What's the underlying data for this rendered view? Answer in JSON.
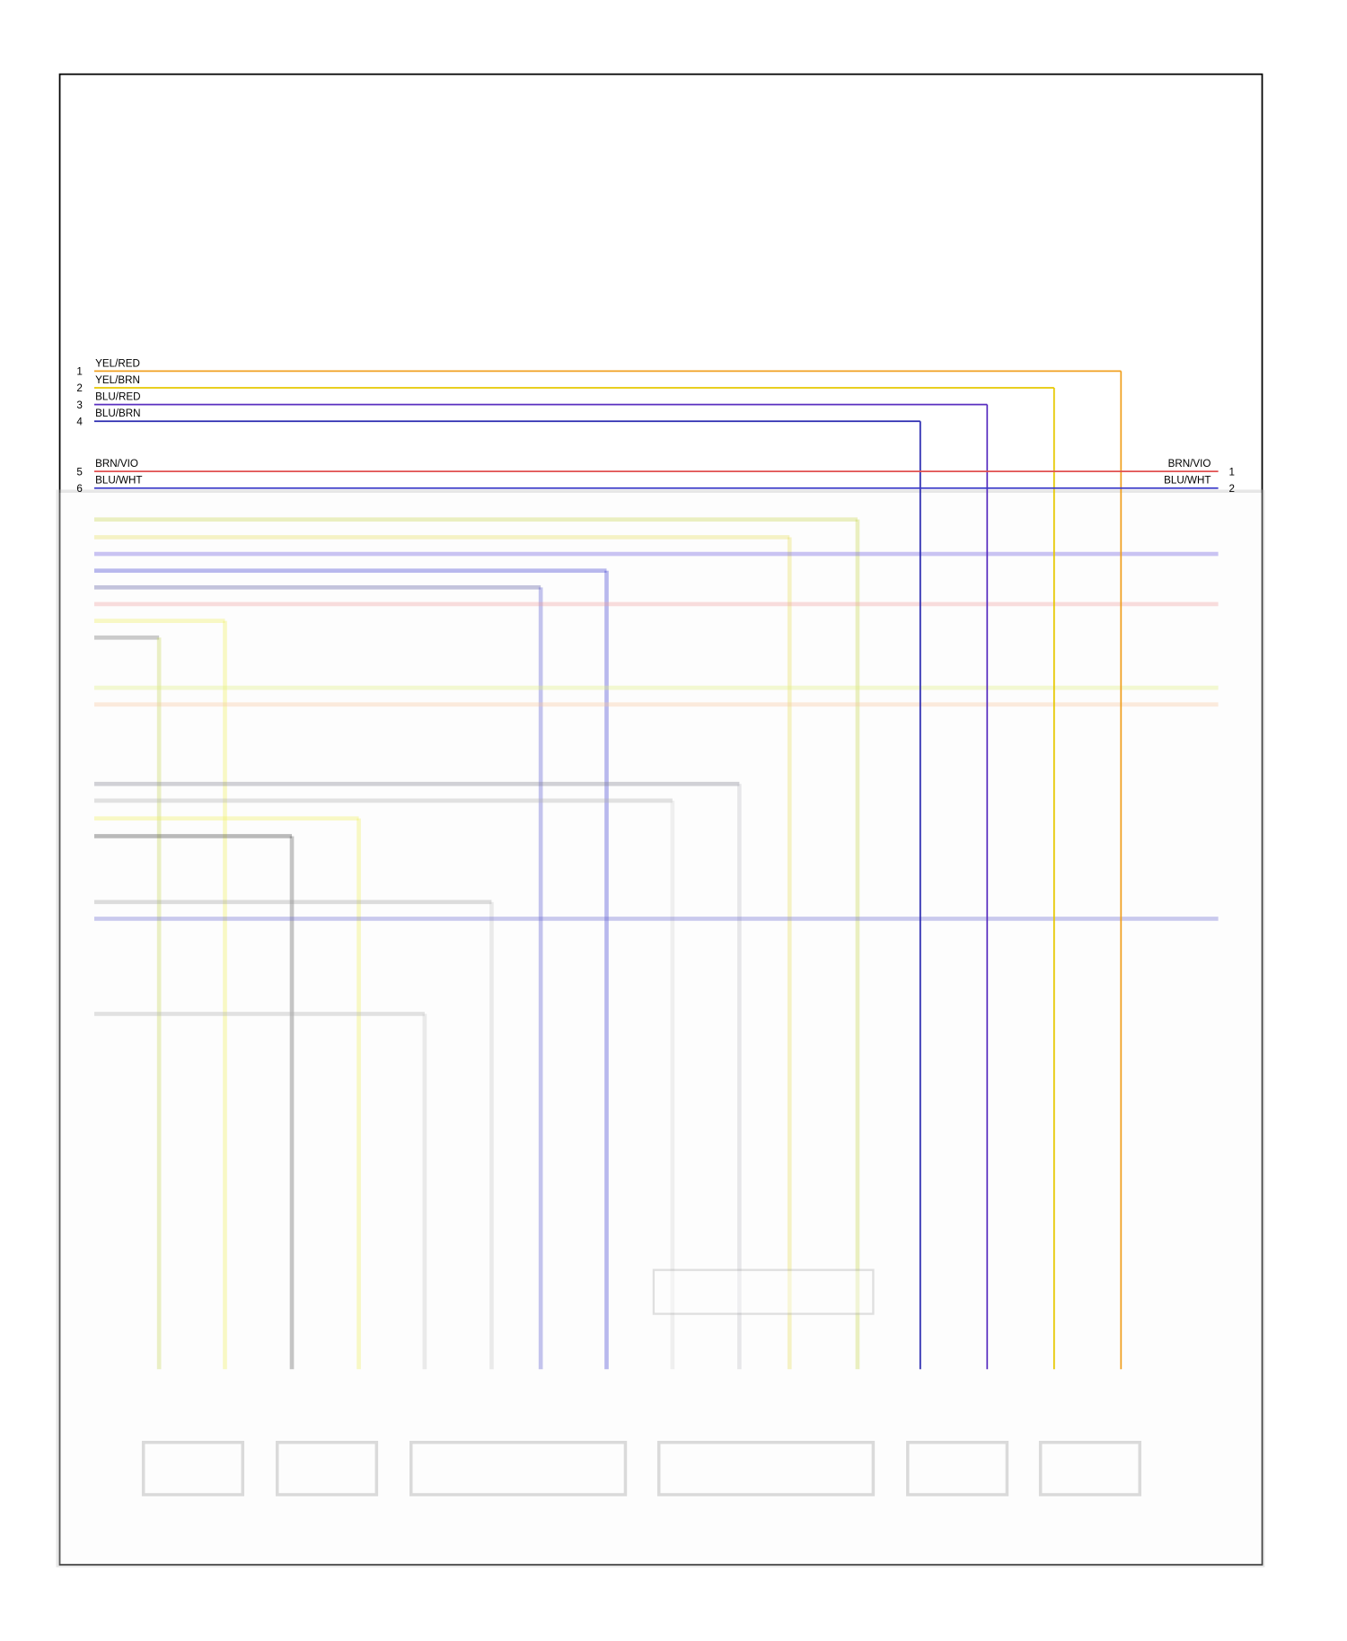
{
  "wires_left": [
    {
      "pin": 1,
      "label": "YEL/RED",
      "color": "#f0a020"
    },
    {
      "pin": 2,
      "label": "YEL/BRN",
      "color": "#e6c800"
    },
    {
      "pin": 3,
      "label": "BLU/RED",
      "color": "#5a2fc0"
    },
    {
      "pin": 4,
      "label": "BLU/BRN",
      "color": "#2a2ab0"
    },
    {
      "pin": 5,
      "label": "BRN/VIO",
      "color": "#e05050"
    },
    {
      "pin": 6,
      "label": "BLU/WHT",
      "color": "#3a3ac8"
    }
  ],
  "wires_right": [
    {
      "label": "BRN/VIO",
      "pin": 1
    },
    {
      "label": "BLU/WHT",
      "pin": 2
    }
  ]
}
